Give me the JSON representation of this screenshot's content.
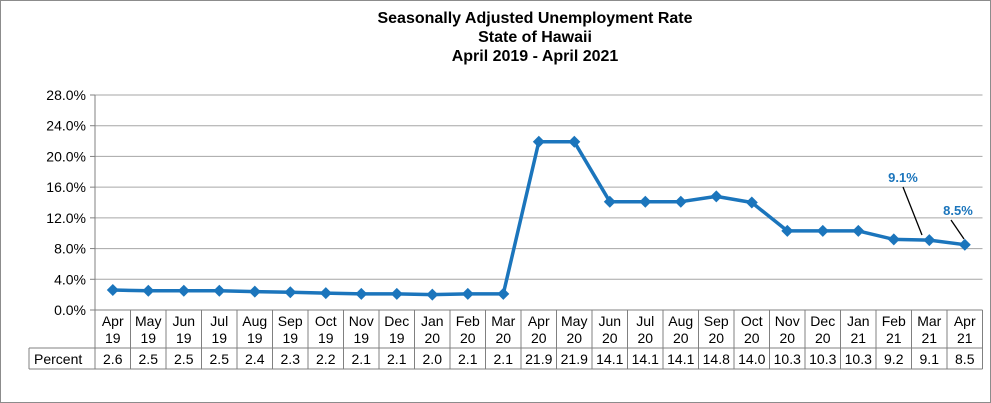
{
  "chart_data": {
    "type": "line",
    "title": "Seasonally Adjusted Unemployment Rate",
    "subtitle": "State of Hawaii",
    "period": "April 2019 - April 2021",
    "categories": [
      [
        "Apr",
        "19"
      ],
      [
        "May",
        "19"
      ],
      [
        "Jun",
        "19"
      ],
      [
        "Jul",
        "19"
      ],
      [
        "Aug",
        "19"
      ],
      [
        "Sep",
        "19"
      ],
      [
        "Oct",
        "19"
      ],
      [
        "Nov",
        "19"
      ],
      [
        "Dec",
        "19"
      ],
      [
        "Jan",
        "20"
      ],
      [
        "Feb",
        "20"
      ],
      [
        "Mar",
        "20"
      ],
      [
        "Apr",
        "20"
      ],
      [
        "May",
        "20"
      ],
      [
        "Jun",
        "20"
      ],
      [
        "Jul",
        "20"
      ],
      [
        "Aug",
        "20"
      ],
      [
        "Sep",
        "20"
      ],
      [
        "Oct",
        "20"
      ],
      [
        "Nov",
        "20"
      ],
      [
        "Dec",
        "20"
      ],
      [
        "Jan",
        "21"
      ],
      [
        "Feb",
        "21"
      ],
      [
        "Mar",
        "21"
      ],
      [
        "Apr",
        "21"
      ]
    ],
    "series": [
      {
        "name": "Percent",
        "color": "#1b75bc",
        "values": [
          2.6,
          2.5,
          2.5,
          2.5,
          2.4,
          2.3,
          2.2,
          2.1,
          2.1,
          2.0,
          2.1,
          2.1,
          21.9,
          21.9,
          14.1,
          14.1,
          14.1,
          14.8,
          14.0,
          10.3,
          10.3,
          10.3,
          9.2,
          9.1,
          8.5
        ]
      }
    ],
    "table_values": [
      "2.6",
      "2.5",
      "2.5",
      "2.5",
      "2.4",
      "2.3",
      "2.2",
      "2.1",
      "2.1",
      "2.0",
      "2.1",
      "2.1",
      "21.9",
      "21.9",
      "14.1",
      "14.1",
      "14.1",
      "14.8",
      "14.0",
      "10.3",
      "10.3",
      "10.3",
      "9.2",
      "9.1",
      "8.5"
    ],
    "yticks": [
      "0.0%",
      "4.0%",
      "8.0%",
      "12.0%",
      "16.0%",
      "20.0%",
      "24.0%",
      "28.0%"
    ],
    "ylim": [
      0,
      28
    ],
    "grid": true,
    "annotations": [
      {
        "index": 23,
        "text": "9.1%"
      },
      {
        "index": 24,
        "text": "8.5%"
      }
    ]
  }
}
